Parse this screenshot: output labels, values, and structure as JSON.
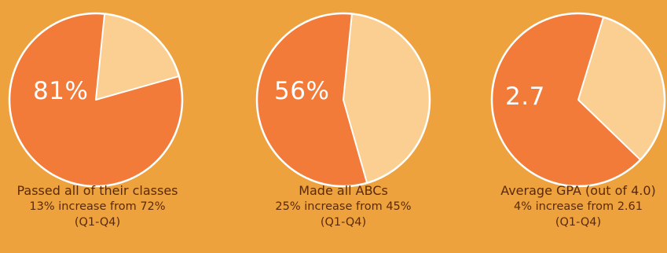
{
  "colors": {
    "background": "#EDA23E",
    "primary_slice": "#F27B3A",
    "secondary_slice": "#FBCF91",
    "stroke": "#FFFFFF",
    "caption_text": "#5A2A08"
  },
  "chart_data": [
    {
      "type": "pie",
      "center_label": "81%",
      "values": [
        81,
        19
      ],
      "caption": {
        "title": "Passed all of their classes",
        "subtitle": "13% increase from 72%",
        "period": "(Q1-Q4)"
      }
    },
    {
      "type": "pie",
      "center_label": "56%",
      "values": [
        56,
        44
      ],
      "caption": {
        "title": "Made all ABCs",
        "subtitle": "25% increase from 45%",
        "period": "(Q1-Q4)"
      }
    },
    {
      "type": "pie",
      "center_label": "2.7",
      "values": [
        67.5,
        32.5
      ],
      "caption": {
        "title": "Average GPA (out of 4.0)",
        "subtitle": "4% increase from 2.61",
        "period": "(Q1-Q4)"
      }
    }
  ]
}
